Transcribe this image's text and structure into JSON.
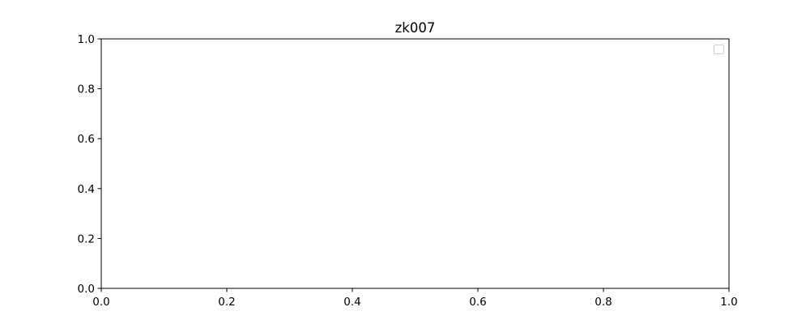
{
  "chart_data": {
    "type": "line",
    "title": "zk007",
    "xlabel": "",
    "ylabel": "",
    "xlim": [
      0.0,
      1.0
    ],
    "ylim": [
      0.0,
      1.0
    ],
    "x_ticks": [
      "0.0",
      "0.2",
      "0.4",
      "0.6",
      "0.8",
      "1.0"
    ],
    "y_ticks": [
      "0.0",
      "0.2",
      "0.4",
      "0.6",
      "0.8",
      "1.0"
    ],
    "series": [],
    "legend": {
      "placement": "top-right",
      "entries": []
    },
    "grid": false
  },
  "colors": {
    "background": "#ffffff",
    "axes": "#000000",
    "legend_border": "#cccccc"
  }
}
